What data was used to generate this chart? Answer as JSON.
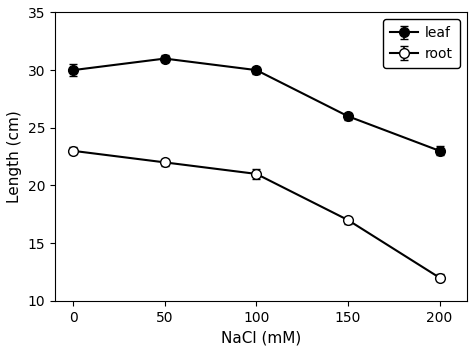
{
  "x": [
    0,
    50,
    100,
    150,
    200
  ],
  "leaf_y": [
    30.0,
    31.0,
    30.0,
    26.0,
    23.0
  ],
  "leaf_yerr": [
    0.5,
    0.3,
    0.3,
    0.3,
    0.4
  ],
  "root_y": [
    23.0,
    22.0,
    21.0,
    17.0,
    12.0
  ],
  "root_yerr": [
    0.3,
    0.3,
    0.4,
    0.3,
    0.3
  ],
  "xlabel": "NaCl (mM)",
  "ylabel": "Length (cm)",
  "ylim": [
    10,
    35
  ],
  "xlim": [
    -10,
    215
  ],
  "yticks": [
    10,
    15,
    20,
    25,
    30,
    35
  ],
  "xticks": [
    0,
    50,
    100,
    150,
    200
  ],
  "legend_leaf": "leaf",
  "legend_root": "root",
  "line_color": "black",
  "leaf_marker": "o",
  "root_marker": "o",
  "leaf_markerfacecolor": "black",
  "root_markerfacecolor": "white",
  "markersize": 7,
  "linewidth": 1.5,
  "capsize": 3,
  "elinewidth": 1.2,
  "xlabel_fontsize": 11,
  "ylabel_fontsize": 11,
  "tick_labelsize": 10,
  "legend_fontsize": 10
}
